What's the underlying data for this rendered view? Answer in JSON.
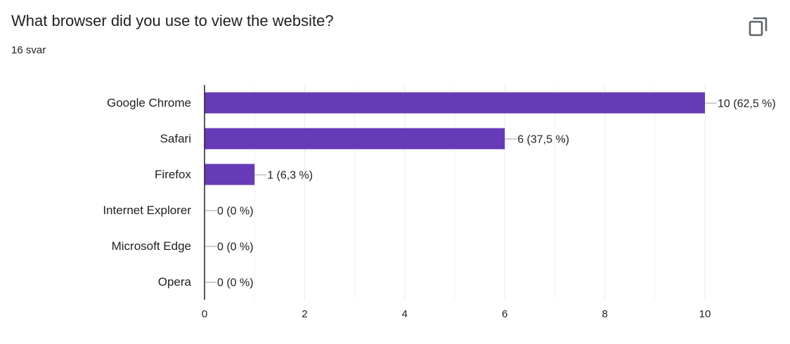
{
  "question": {
    "title": "What browser did you use to view the website?",
    "response_count": "16 svar",
    "copy_icon": "copy-icon"
  },
  "colors": {
    "bar": "#673ab7",
    "grid": "#e8eaed",
    "axis": "#202124",
    "text": "#202124"
  },
  "chart_data": {
    "type": "bar",
    "orientation": "horizontal",
    "title": "",
    "categories": [
      "Google Chrome",
      "Safari",
      "Firefox",
      "Internet Explorer",
      "Microsoft Edge",
      "Opera"
    ],
    "values": [
      10,
      6,
      1,
      0,
      0,
      0
    ],
    "data_labels": [
      "10 (62,5 %)",
      "6 (37,5 %)",
      "1 (6,3 %)",
      "0 (0 %)",
      "0 (0 %)",
      "0 (0 %)"
    ],
    "xlim": [
      0,
      10
    ],
    "xticks": [
      0,
      2,
      4,
      6,
      8,
      10
    ],
    "xlabel": "",
    "ylabel": "",
    "grid": true,
    "legend": "none"
  }
}
